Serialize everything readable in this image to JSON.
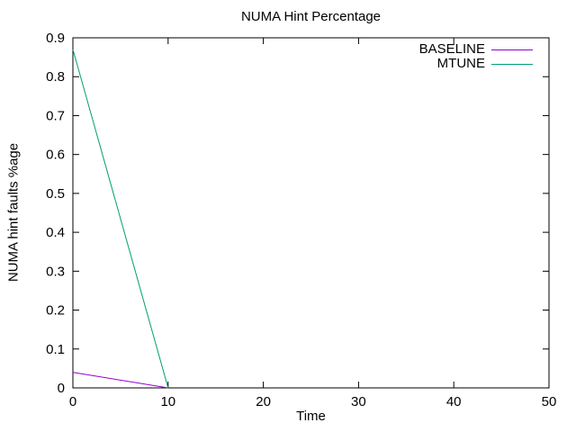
{
  "title": "NUMA Hint Percentage",
  "colors": {
    "background": "#ffffff",
    "axis": "#000000",
    "text": "#000000",
    "baseline_line": "#9400d3",
    "mtune_line": "#009e73"
  },
  "chart_data": {
    "type": "line",
    "title": "NUMA Hint Percentage",
    "xlabel": "Time",
    "ylabel": "NUMA hint faults %age",
    "xlim": [
      0,
      50
    ],
    "ylim": [
      0,
      0.9
    ],
    "xticks": [
      0,
      10,
      20,
      30,
      40,
      50
    ],
    "yticks": [
      0,
      0.1,
      0.2,
      0.3,
      0.4,
      0.5,
      0.6,
      0.7,
      0.8,
      0.9
    ],
    "grid": false,
    "tick_style": "inward-mirrored-all-borders",
    "legend_position": "top-right-inside",
    "series": [
      {
        "name": "BASELINE",
        "color": "#9400d3",
        "points": [
          [
            0,
            0.04
          ],
          [
            10,
            0
          ]
        ]
      },
      {
        "name": "MTUNE",
        "color": "#009e73",
        "points": [
          [
            0,
            0.87
          ],
          [
            10,
            0
          ]
        ]
      }
    ]
  }
}
